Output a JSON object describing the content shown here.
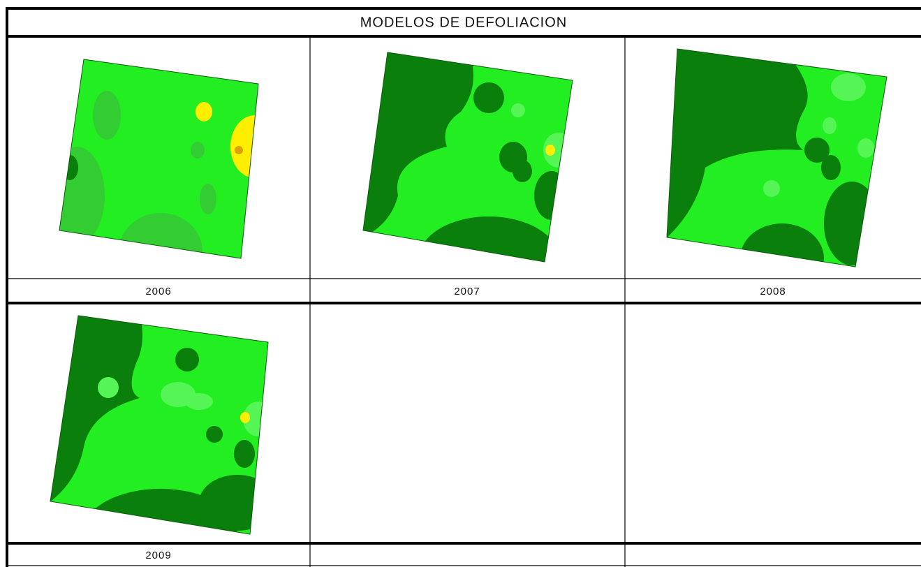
{
  "table": {
    "title": "MODELOS DE DEFOLIACION",
    "captions": [
      "2006",
      "2007",
      "2008",
      "2009"
    ]
  }
}
